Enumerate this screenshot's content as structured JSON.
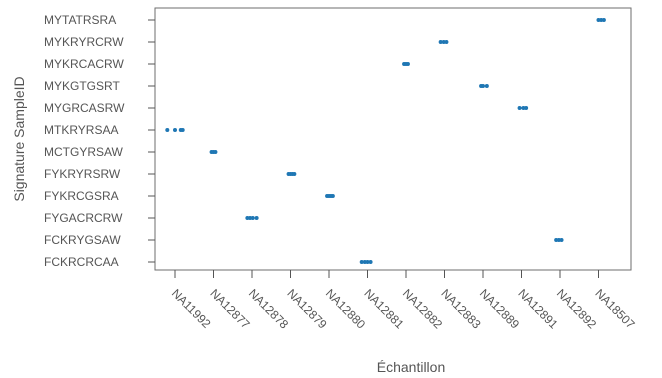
{
  "chart_data": {
    "type": "scatter",
    "title": "",
    "xlabel": "Échantillon",
    "ylabel": "Signature SampleID",
    "grid": false,
    "legend": "none",
    "colors": {
      "point": "#1f77b4",
      "axis": "#555555",
      "frame": "#6e6e6e"
    },
    "x_categories": [
      "NA11992",
      "NA12877",
      "NA12878",
      "NA12879",
      "NA12880",
      "NA12881",
      "NA12882",
      "NA12883",
      "NA12889",
      "NA12891",
      "NA12892",
      "NA18507"
    ],
    "y_categories": [
      "FCKRCRCAA",
      "FCKRYGSAW",
      "FYGACRCRW",
      "FYKRCGSRA",
      "FYKRYRSRW",
      "MCTGYRSAW",
      "MTKRYRSAA",
      "MYGRCASRW",
      "MYKGTGSRT",
      "MYKRCACRW",
      "MYKRYRCRW",
      "MYTATRSRA"
    ],
    "points": [
      {
        "x": "NA11992",
        "y": "MTKRYRSAA",
        "jitter": [
          -0.2,
          0.0,
          0.15,
          0.2
        ]
      },
      {
        "x": "NA12877",
        "y": "MCTGYRSAW",
        "jitter": [
          -0.05,
          0.0,
          0.05
        ]
      },
      {
        "x": "NA12878",
        "y": "FYGACRCRW",
        "jitter": [
          -0.12,
          -0.05,
          0.02,
          0.12
        ]
      },
      {
        "x": "NA12879",
        "y": "FYKRYRSRW",
        "jitter": [
          -0.05,
          0.0,
          0.05,
          0.1
        ]
      },
      {
        "x": "NA12880",
        "y": "FYKRCGSRA",
        "jitter": [
          -0.05,
          0.0,
          0.05,
          0.1
        ]
      },
      {
        "x": "NA12881",
        "y": "FCKRCRCAA",
        "jitter": [
          -0.15,
          -0.07,
          0.0,
          0.08
        ]
      },
      {
        "x": "NA12882",
        "y": "MYKRCACRW",
        "jitter": [
          -0.05,
          0.0,
          0.05
        ]
      },
      {
        "x": "NA12883",
        "y": "MYKRYRCRW",
        "jitter": [
          -0.1,
          -0.02,
          0.05
        ]
      },
      {
        "x": "NA12889",
        "y": "MYKGTGSRT",
        "jitter": [
          -0.05,
          0.0,
          0.1
        ]
      },
      {
        "x": "NA12891",
        "y": "MYGRCASRW",
        "jitter": [
          -0.05,
          0.05,
          0.12
        ]
      },
      {
        "x": "NA12892",
        "y": "FCKRYGSAW",
        "jitter": [
          -0.1,
          -0.03,
          0.04
        ]
      },
      {
        "x": "NA18507",
        "y": "MYTATRSRA",
        "jitter": [
          0.0,
          0.07,
          0.14
        ]
      }
    ]
  }
}
